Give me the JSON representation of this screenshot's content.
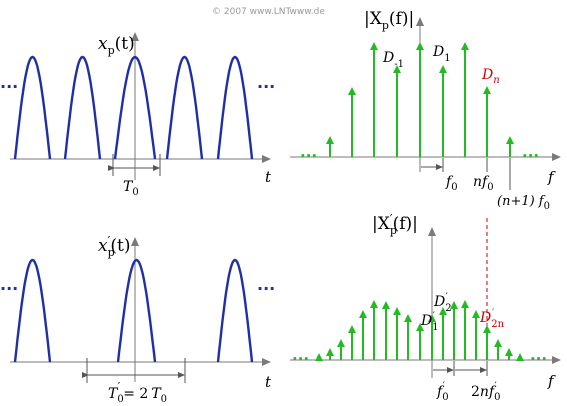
{
  "copyright": "© 2007 www.LNTwww.de",
  "colors": {
    "arch": "#1f2fa8",
    "spectrum": "#22bb22",
    "highlight": "#cc0000",
    "axis": "#7a7a7a",
    "dimension": "#555555"
  },
  "panels": {
    "time_top": {
      "signal_label": "x",
      "signal_sub": "p",
      "signal_arg": "(t)",
      "axis_label": "t",
      "period_label": "T",
      "period_sub": "0",
      "ellipsis_left": "...",
      "ellipsis_right": "..."
    },
    "time_bottom": {
      "signal_label": "x",
      "signal_sub": "p",
      "signal_prime": "′",
      "signal_arg": "(t)",
      "axis_label": "t",
      "period_label": "T",
      "period_sub": "0",
      "period_prime": "′",
      "period_eq": "= 2",
      "period_rhs": "T",
      "period_rhs_sub": "0",
      "ellipsis_left": "...",
      "ellipsis_right": "..."
    },
    "spectrum_top": {
      "title": "|X",
      "title_sub": "p",
      "title_arg": "(f)|",
      "axis_label": "f",
      "labels": {
        "d_minus1": "D",
        "d_minus1_sub": "-1",
        "d_1": "D",
        "d_1_sub": "1",
        "d_n": "D",
        "d_n_sub": "n",
        "f0": "f",
        "f0_sub": "0",
        "nf0": "nf",
        "nf0_sub": "0",
        "n1f0": "(n+1) f",
        "n1f0_sub": "0"
      },
      "ellipsis_left": "...",
      "ellipsis_right": "..."
    },
    "spectrum_bottom": {
      "title": "|X",
      "title_sub": "p",
      "title_prime": "′",
      "title_arg": "(f)|",
      "axis_label": "f",
      "labels": {
        "d1": "D",
        "d1_sub": "1",
        "d1_prime": "′",
        "d2": "D",
        "d2_sub": "2",
        "d2_prime": "′",
        "d2n": "D",
        "d2n_sub": "2n",
        "d2n_prime": "′",
        "f0": "f",
        "f0_sub": "0",
        "f0_prime": "′",
        "nf0": "2",
        "nf0_mid": "n",
        "nf0_f": "f",
        "nf0_sub": "0",
        "nf0_prime": "′"
      },
      "ellipsis_left": "...",
      "ellipsis_right": "..."
    }
  }
}
